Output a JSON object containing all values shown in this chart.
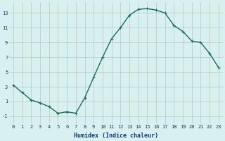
{
  "x": [
    0,
    1,
    2,
    3,
    4,
    5,
    6,
    7,
    8,
    9,
    10,
    11,
    12,
    13,
    14,
    15,
    16,
    17,
    18,
    19,
    20,
    21,
    22,
    23
  ],
  "y": [
    3.2,
    2.2,
    1.2,
    0.8,
    0.3,
    -0.6,
    -0.4,
    -0.6,
    1.5,
    4.3,
    7.0,
    9.5,
    11.0,
    12.7,
    13.5,
    13.6,
    13.4,
    13.0,
    11.3,
    10.5,
    9.2,
    9.0,
    7.5,
    5.6
  ],
  "line_color": "#1a6b5a",
  "marker": "+",
  "marker_size": 3,
  "line_width": 1.0,
  "bg_color": "#d8f0f0",
  "grid_color": "#b8c8b8",
  "xlabel": "Humidex (Indice chaleur)",
  "xlabel_color": "#1a3a6a",
  "xlabel_fontsize": 6,
  "tick_color": "#1a3a6a",
  "tick_fontsize": 5,
  "xlim": [
    -0.5,
    23.5
  ],
  "ylim": [
    -2,
    14.5
  ],
  "yticks": [
    -1,
    1,
    3,
    5,
    7,
    9,
    11,
    13
  ],
  "xticks": [
    0,
    1,
    2,
    3,
    4,
    5,
    6,
    7,
    8,
    9,
    10,
    11,
    12,
    13,
    14,
    15,
    16,
    17,
    18,
    19,
    20,
    21,
    22,
    23
  ]
}
